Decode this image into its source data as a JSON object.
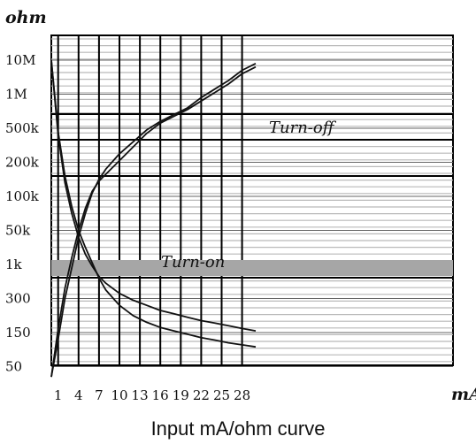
{
  "chart_data": {
    "type": "line",
    "title": "Input mA/ohm curve",
    "xlabel": "mA",
    "ylabel": "ohm",
    "x_ticks": [
      "1",
      "4",
      "7",
      "10",
      "13",
      "16",
      "19",
      "22",
      "25",
      "28"
    ],
    "y_ticks": [
      "10M",
      "1M",
      "500k",
      "200k",
      "100k",
      "50k",
      "1k",
      "300",
      "150",
      "50"
    ],
    "xlim": [
      0,
      32
    ],
    "y_scale": "categorical-log (tick positions evenly spaced)",
    "bands": [
      {
        "label": "Turn-off",
        "y_upper": "1M",
        "y_lower": "200k",
        "x_label_at": 21
      },
      {
        "label": "Turn-on",
        "y_upper": "50k",
        "y_lower": "1k",
        "x_label_at": 10,
        "shaded_row": true
      }
    ],
    "series": [
      {
        "kind": "decreasing",
        "x": [
          0,
          1,
          2,
          3,
          4,
          5,
          6,
          7,
          8,
          10,
          12,
          14,
          16,
          18,
          20,
          22,
          24,
          26,
          28,
          30
        ],
        "y_tick_position": [
          0.0,
          2.2,
          3.6,
          4.5,
          5.2,
          5.7,
          6.05,
          6.35,
          6.55,
          6.85,
          7.05,
          7.2,
          7.35,
          7.45,
          7.55,
          7.65,
          7.72,
          7.8,
          7.88,
          7.95
        ]
      },
      {
        "kind": "decreasing",
        "x": [
          0,
          1,
          2,
          3,
          4,
          5,
          6,
          7,
          8,
          10,
          12,
          14,
          16,
          18,
          20,
          22,
          24,
          26,
          28,
          30
        ],
        "y_tick_position": [
          0.0,
          2.1,
          3.4,
          4.3,
          5.0,
          5.5,
          5.95,
          6.4,
          6.75,
          7.2,
          7.5,
          7.7,
          7.85,
          7.95,
          8.05,
          8.15,
          8.22,
          8.3,
          8.36,
          8.42
        ]
      },
      {
        "kind": "increasing",
        "x": [
          0,
          1,
          2,
          3,
          4,
          5,
          6,
          7,
          8,
          10,
          12,
          14,
          16,
          18,
          20,
          22,
          24,
          26,
          28,
          30
        ],
        "y_tick_position": [
          9.3,
          8.2,
          7.0,
          6.1,
          5.2,
          4.5,
          3.9,
          3.5,
          3.2,
          2.75,
          2.4,
          2.05,
          1.8,
          1.6,
          1.4,
          1.1,
          0.85,
          0.6,
          0.3,
          0.1
        ]
      },
      {
        "kind": "increasing",
        "x": [
          0,
          1,
          2,
          3,
          4,
          5,
          6,
          7,
          8,
          10,
          12,
          14,
          16,
          18,
          20,
          22,
          24,
          26,
          28,
          30
        ],
        "y_tick_position": [
          9.3,
          7.9,
          6.7,
          5.8,
          5.0,
          4.35,
          3.85,
          3.55,
          3.35,
          2.95,
          2.55,
          2.15,
          1.85,
          1.65,
          1.45,
          1.2,
          0.95,
          0.7,
          0.4,
          0.2
        ]
      }
    ]
  }
}
